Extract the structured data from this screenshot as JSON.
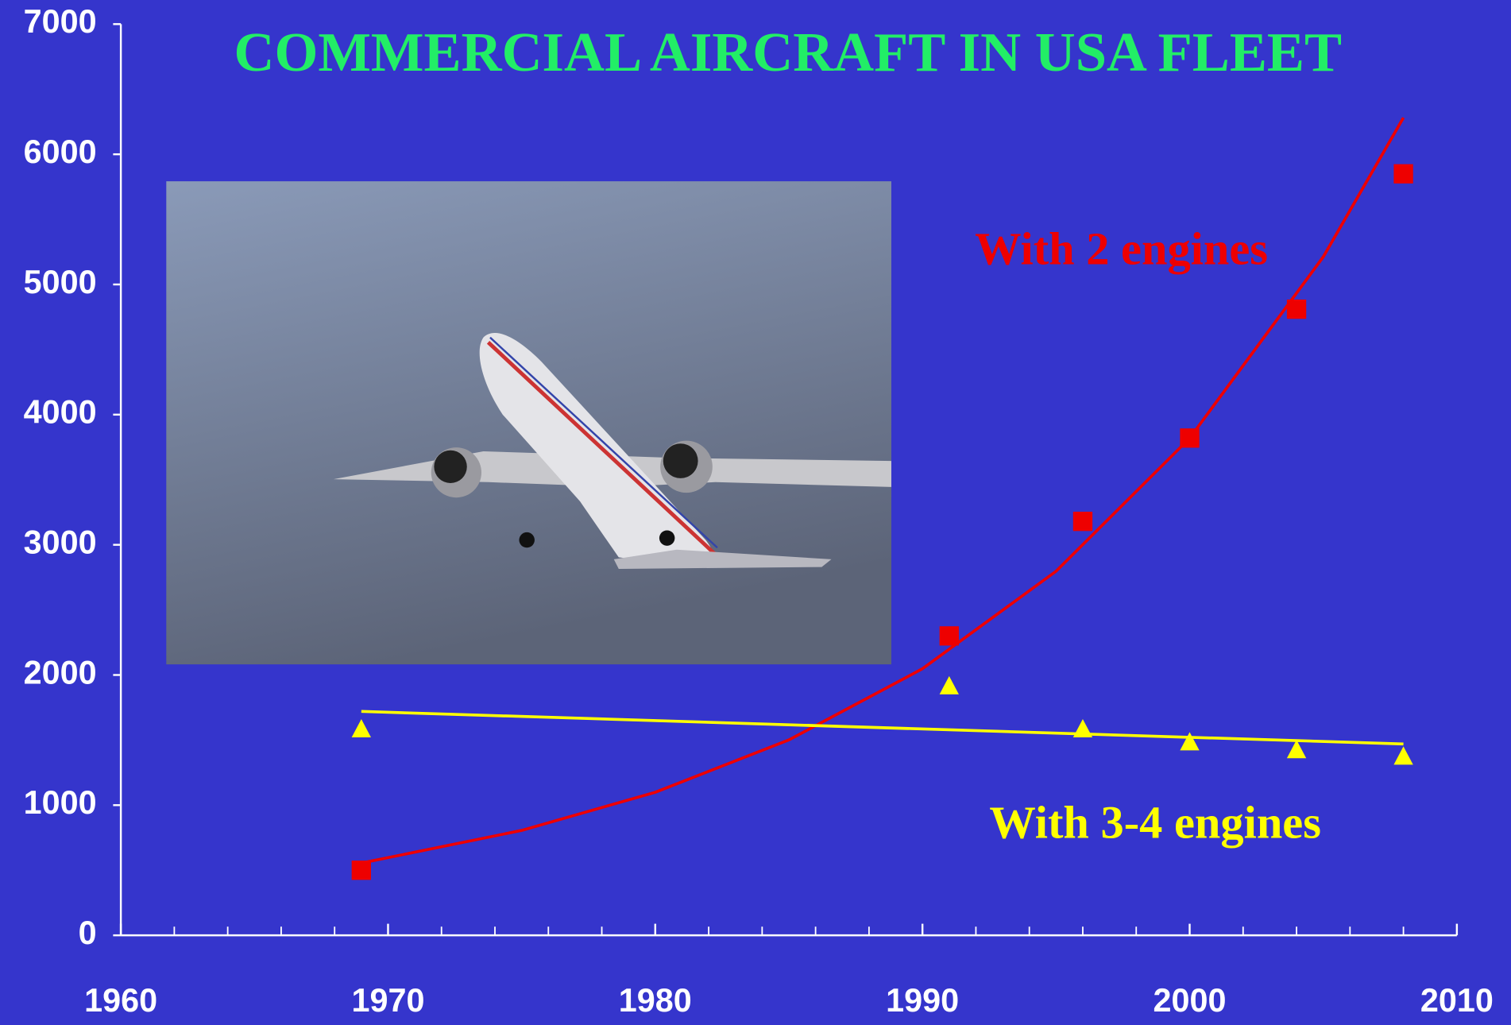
{
  "chart_data": {
    "type": "scatter",
    "title": "COMMERCIAL AIRCRAFT IN USA FLEET",
    "background": "#3535cc",
    "title_color": "#22ee66",
    "xlim": [
      1960,
      2010
    ],
    "ylim": [
      0,
      7000
    ],
    "xticks": [
      1960,
      1970,
      1980,
      1990,
      2000,
      2010
    ],
    "xminor_ticks": [
      1962,
      1964,
      1966,
      1968,
      1972,
      1974,
      1976,
      1978,
      1982,
      1984,
      1986,
      1988,
      1992,
      1994,
      1996,
      1998,
      2002,
      2004,
      2006,
      2008
    ],
    "yticks": [
      0,
      1000,
      2000,
      3000,
      4000,
      5000,
      6000,
      7000
    ],
    "series": [
      {
        "name": "With 2 engines",
        "color": "#ee0000",
        "marker": "square",
        "x": [
          1969,
          1991,
          1996,
          2000,
          2004,
          2008
        ],
        "values": [
          500,
          2300,
          3180,
          3820,
          4810,
          5850
        ]
      },
      {
        "name": "With 3-4 engines",
        "color": "#ffff00",
        "marker": "triangle",
        "x": [
          1969,
          1991,
          1996,
          2000,
          2004,
          2008
        ],
        "values": [
          1580,
          1910,
          1580,
          1480,
          1420,
          1370
        ]
      }
    ],
    "trend_lines": [
      {
        "color": "#ee0000",
        "x": [
          1969,
          1975,
          1980,
          1985,
          1990,
          1995,
          2000,
          2005,
          2008
        ],
        "values": [
          555,
          806,
          1099,
          1501,
          2048,
          2797,
          3819,
          5212,
          6281
        ]
      },
      {
        "color": "#ffff00",
        "x": [
          1969,
          2008
        ],
        "values": [
          1720,
          1470
        ]
      }
    ]
  }
}
